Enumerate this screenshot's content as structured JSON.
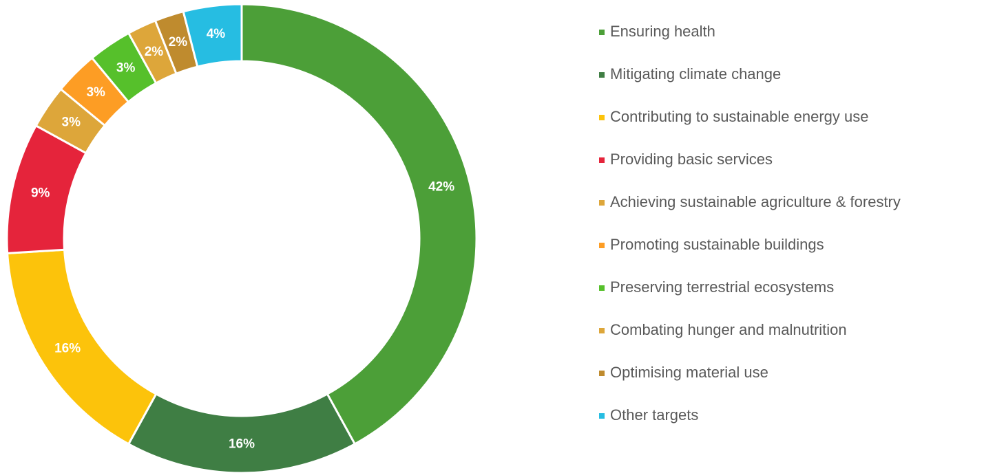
{
  "chart_data": {
    "type": "donut",
    "categories": [
      "Ensuring health",
      "Mitigating climate change",
      "Contributing to sustainable energy use",
      "Providing basic services",
      "Achieving sustainable agriculture & forestry",
      "Promoting sustainable buildings",
      "Preserving terrestrial ecosystems",
      "Combating hunger and malnutrition",
      "Optimising material use",
      "Other targets"
    ],
    "values": [
      42,
      16,
      16,
      9,
      3,
      3,
      3,
      2,
      2,
      4
    ],
    "value_labels": [
      "42%",
      "16%",
      "16%",
      "9%",
      "3%",
      "3%",
      "3%",
      "2%",
      "2%",
      "4%"
    ],
    "colors": [
      "#4c9f38",
      "#3f7e44",
      "#fcc30b",
      "#e5243b",
      "#dda63a",
      "#fd9d24",
      "#56c02b",
      "#dda63a",
      "#bf8b2e",
      "#26bde2"
    ],
    "legend": "right"
  }
}
